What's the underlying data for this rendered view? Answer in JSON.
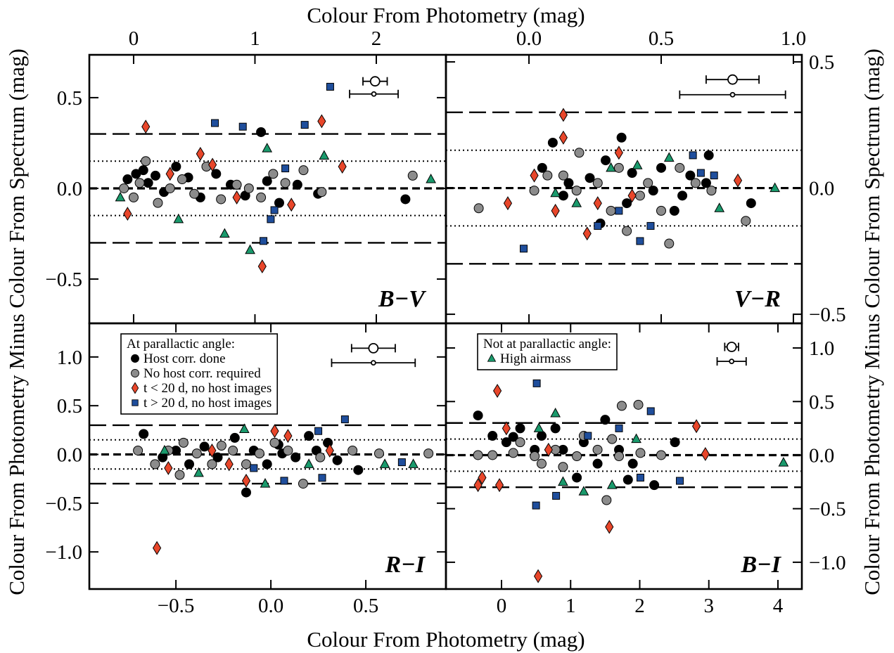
{
  "figure": {
    "top_xlabel": "Colour From Photometry (mag)",
    "bottom_xlabel": "Colour From Photometry (mag)",
    "left_ylabel": "Colour From Photometry Minus Colour From Spectrum (mag)",
    "right_ylabel": "Colour From Photometry Minus Colour From Spectrum (mag)"
  },
  "chart_data": [
    {
      "type": "scatter",
      "label": "B−V",
      "x_axis": "top",
      "y_axis": "left",
      "xlim": [
        -0.365,
        2.574
      ],
      "xticks": [
        0,
        1,
        2
      ],
      "ylim": [
        -0.744,
        0.736
      ],
      "yticks": [
        {
          "value": -0.5,
          "label": "−0.5"
        },
        {
          "value": 0,
          "label": "0.0"
        },
        0.5
      ],
      "hlines": [
        {
          "y": 0,
          "style": "dashed-heavy"
        },
        {
          "y": 0.15,
          "style": "dotted"
        },
        {
          "y": -0.15,
          "style": "dotted"
        },
        {
          "y": 0.3,
          "style": "dashed"
        },
        {
          "y": -0.3,
          "style": "dashed"
        }
      ],
      "errorbars": [
        {
          "x": 1.99,
          "y": 0.59,
          "xerr": 0.1,
          "marker": "open"
        },
        {
          "x": 1.98,
          "y": 0.52,
          "xerr": 0.2,
          "marker": "small"
        }
      ],
      "series": [
        {
          "color": "#000000",
          "marker": "circle",
          "x": [
            -0.05,
            0.02,
            0.08,
            0.12,
            0.18,
            0.25,
            0.35,
            0.45,
            0.55,
            0.68,
            0.8,
            0.92,
            1.05,
            1.1,
            1.2,
            1.35,
            1.52,
            2.24
          ],
          "y": [
            0.05,
            0.08,
            0.1,
            0.03,
            0.07,
            -0.02,
            0.12,
            0.06,
            -0.05,
            0.08,
            0.02,
            -0.04,
            0.31,
            0.04,
            -0.08,
            0.02,
            -0.03,
            -0.06
          ]
        },
        {
          "color": "#8c8c8c",
          "marker": "circle",
          "x": [
            -0.08,
            0.0,
            0.05,
            0.1,
            0.2,
            0.3,
            0.4,
            0.5,
            0.6,
            0.72,
            0.85,
            0.95,
            1.05,
            1.15,
            1.25,
            1.4,
            1.55,
            2.3
          ],
          "y": [
            0.0,
            -0.05,
            0.03,
            0.15,
            -0.08,
            0.0,
            0.05,
            -0.03,
            0.12,
            -0.06,
            0.02,
            0.0,
            -0.05,
            0.08,
            0.03,
            0.1,
            -0.02,
            0.07
          ]
        },
        {
          "color": "#e8462a",
          "marker": "diamond",
          "x": [
            -0.05,
            0.1,
            0.3,
            0.55,
            0.65,
            0.85,
            1.06,
            1.3,
            1.55,
            1.72
          ],
          "y": [
            -0.14,
            0.34,
            0.08,
            0.19,
            0.13,
            -0.05,
            -0.43,
            -0.09,
            0.37,
            0.12
          ]
        },
        {
          "color": "#1f4e9c",
          "marker": "square",
          "x": [
            0.67,
            0.9,
            1.62,
            1.41,
            1.13,
            1.07,
            1.25,
            1.16
          ],
          "y": [
            0.36,
            0.34,
            0.56,
            0.35,
            -0.17,
            -0.29,
            0.11,
            -0.12
          ]
        },
        {
          "color": "#1a9a6c",
          "marker": "triangle",
          "x": [
            -0.11,
            0.37,
            0.75,
            1.1,
            1.57,
            2.45,
            0.96
          ],
          "y": [
            -0.05,
            -0.17,
            -0.25,
            0.22,
            0.18,
            0.05,
            -0.34
          ]
        }
      ]
    },
    {
      "type": "scatter",
      "label": "V−R",
      "x_axis": "top",
      "y_axis": "right",
      "xlim": [
        -0.314,
        1.032
      ],
      "xticks": [
        {
          "value": 0,
          "label": "0.0"
        },
        0.5,
        {
          "value": 1,
          "label": "1.0"
        }
      ],
      "ylim": [
        -0.536,
        0.528
      ],
      "yticks": [
        {
          "value": -0.5,
          "label": "−0.5"
        },
        {
          "value": 0,
          "label": "0.0"
        },
        0.5
      ],
      "hlines": [
        {
          "y": 0,
          "style": "dashed-heavy"
        },
        {
          "y": 0.15,
          "style": "dotted"
        },
        {
          "y": -0.15,
          "style": "dotted"
        },
        {
          "y": 0.3,
          "style": "dashed"
        },
        {
          "y": -0.3,
          "style": "dashed"
        }
      ],
      "errorbars": [
        {
          "x": 0.77,
          "y": 0.43,
          "xerr": 0.1,
          "marker": "open"
        },
        {
          "x": 0.77,
          "y": 0.37,
          "xerr": 0.2,
          "marker": "small"
        }
      ],
      "series": [
        {
          "color": "#000000",
          "marker": "circle",
          "x": [
            0.35,
            0.68,
            0.84,
            0.09,
            0.27,
            0.55,
            0.67,
            0.05,
            0.15,
            0.23,
            0.39,
            0.47,
            0.58,
            0.37,
            0.13,
            0.29,
            0.5,
            0.61
          ],
          "y": [
            0.2,
            0.13,
            -0.06,
            0.18,
            -0.14,
            -0.09,
            0.02,
            0.08,
            0.02,
            0.04,
            0.06,
            -0.01,
            -0.03,
            -0.06,
            -0.03,
            0.11,
            0.08,
            0.05
          ]
        },
        {
          "color": "#8c8c8c",
          "marker": "circle",
          "x": [
            -0.19,
            0.53,
            0.37,
            0.19,
            0.82,
            0.07,
            0.18,
            0.26,
            0.34,
            0.42,
            0.5,
            0.57,
            0.63,
            0.02,
            0.13,
            0.31,
            0.45,
            0.69
          ],
          "y": [
            -0.08,
            -0.22,
            -0.17,
            0.14,
            -0.13,
            0.05,
            -0.01,
            0.02,
            0.08,
            -0.03,
            -0.09,
            0.08,
            0.02,
            -0.01,
            0.05,
            -0.09,
            0.02,
            -0.01
          ]
        },
        {
          "color": "#e8462a",
          "marker": "diamond",
          "x": [
            0.13,
            0.13,
            0.22,
            0.34,
            -0.08,
            0.79,
            0.02,
            0.26,
            0.1,
            0.39
          ],
          "y": [
            0.29,
            0.2,
            -0.18,
            0.14,
            -0.06,
            0.03,
            0.05,
            -0.06,
            -0.09,
            -0.03
          ]
        },
        {
          "color": "#1f4e9c",
          "marker": "square",
          "x": [
            -0.02,
            0.42,
            0.62,
            0.46,
            0.65,
            0.7,
            0.26,
            0.34
          ],
          "y": [
            -0.24,
            -0.21,
            0.13,
            -0.15,
            0.06,
            0.05,
            -0.15,
            -0.09
          ]
        },
        {
          "color": "#1a9a6c",
          "marker": "triangle",
          "x": [
            0.41,
            0.93,
            0.72,
            0.53,
            0.31,
            0.18,
            0.1
          ],
          "y": [
            0.09,
            0.0,
            -0.08,
            0.12,
            0.08,
            -0.06,
            -0.02
          ]
        }
      ]
    },
    {
      "type": "scatter",
      "label": "R−I",
      "x_axis": "bottom",
      "y_axis": "left",
      "legend": "upper left",
      "legend_title": "At parallactic angle:",
      "xlim": [
        -0.956,
        0.922
      ],
      "xticks": [
        {
          "value": -0.5,
          "label": "−0.5"
        },
        {
          "value": 0,
          "label": "0.0"
        },
        0.5
      ],
      "ylim": [
        -1.381,
        1.345
      ],
      "yticks": [
        {
          "value": -1,
          "label": "−1.0"
        },
        {
          "value": -0.5,
          "label": "−0.5"
        },
        {
          "value": 0,
          "label": "0.0"
        },
        0.5,
        {
          "value": 1,
          "label": "1.0"
        }
      ],
      "hlines": [
        {
          "y": 0,
          "style": "dashed-heavy"
        },
        {
          "y": 0.15,
          "style": "dotted"
        },
        {
          "y": -0.15,
          "style": "dotted"
        },
        {
          "y": 0.3,
          "style": "dashed"
        },
        {
          "y": -0.3,
          "style": "dashed"
        }
      ],
      "errorbars": [
        {
          "x": 0.54,
          "y": 1.09,
          "xerr": 0.115,
          "marker": "open"
        },
        {
          "x": 0.54,
          "y": 0.94,
          "xerr": 0.22,
          "marker": "small"
        }
      ],
      "series": [
        {
          "name": "Host corr. done",
          "color": "#000000",
          "marker": "circle",
          "x": [
            -0.67,
            -0.19,
            0.04,
            0.46,
            -0.35,
            -0.5,
            -0.09,
            0.13,
            0.24,
            0.35,
            -0.28,
            -0.57,
            0.2,
            -0.13,
            -0.02,
            -0.43,
            0.06,
            0.3
          ],
          "y": [
            0.21,
            0.17,
            0.1,
            -0.16,
            0.08,
            0.04,
            0.04,
            -0.03,
            0.04,
            -0.06,
            -0.03,
            -0.03,
            0.19,
            -0.39,
            -0.1,
            -0.1,
            0.01,
            0.12
          ]
        },
        {
          "name": "No host corr. required",
          "color": "#8c8c8c",
          "marker": "circle",
          "x": [
            -0.7,
            0.17,
            -0.26,
            -0.48,
            0.83,
            -0.54,
            -0.39,
            -0.2,
            -0.06,
            0.09,
            0.26,
            0.43,
            0.57,
            -0.13,
            -0.31,
            -0.61,
            -0.46,
            0.02
          ],
          "y": [
            0.04,
            -0.3,
            0.09,
            -0.21,
            0.01,
            0.04,
            0.01,
            0.04,
            0.01,
            0.04,
            -0.03,
            0.04,
            0.01,
            -0.1,
            -0.1,
            -0.1,
            0.12,
            0.12
          ]
        },
        {
          "name": "t < 20 d, no host images",
          "color": "#e8462a",
          "marker": "diamond",
          "x": [
            -0.6,
            -0.13,
            0.02,
            -0.22,
            -0.54,
            -0.31,
            0.31,
            0.09
          ],
          "y": [
            -0.96,
            -0.27,
            0.24,
            -0.1,
            -0.14,
            0.04,
            0.04,
            0.19
          ]
        },
        {
          "name": "t > 20 d, no host images",
          "color": "#1f4e9c",
          "marker": "square",
          "x": [
            0.25,
            0.39,
            0.27,
            0.07,
            0.69,
            -0.09
          ],
          "y": [
            0.24,
            0.36,
            -0.24,
            -0.27,
            -0.08,
            -0.14
          ]
        },
        {
          "color": "#1a9a6c",
          "marker": "triangle",
          "x": [
            -0.56,
            -0.38,
            -0.14,
            -0.03,
            0.6,
            0.75,
            0.2
          ],
          "y": [
            0.04,
            -0.19,
            0.26,
            -0.3,
            -0.1,
            -0.1,
            -0.1
          ]
        }
      ]
    },
    {
      "type": "scatter",
      "label": "B−I",
      "x_axis": "bottom",
      "y_axis": "right",
      "legend": "upper left",
      "legend_title": "Not at parallactic angle:",
      "xlim": [
        -0.804,
        4.346
      ],
      "xticks": [
        0,
        1,
        2,
        3,
        4
      ],
      "ylim": [
        -1.25,
        1.23
      ],
      "yticks": [
        {
          "value": -1,
          "label": "−1.0"
        },
        {
          "value": -0.5,
          "label": "−0.5"
        },
        {
          "value": 0,
          "label": "0.0"
        },
        0.5,
        {
          "value": 1,
          "label": "1.0"
        }
      ],
      "hlines": [
        {
          "y": 0,
          "style": "dashed-heavy"
        },
        {
          "y": 0.15,
          "style": "dotted"
        },
        {
          "y": -0.15,
          "style": "dotted"
        },
        {
          "y": 0.3,
          "style": "dashed"
        },
        {
          "y": -0.3,
          "style": "dashed"
        }
      ],
      "errorbars": [
        {
          "x": 3.33,
          "y": 1.01,
          "xerr": 0.1,
          "marker": "open"
        },
        {
          "x": 3.33,
          "y": 0.875,
          "xerr": 0.21,
          "marker": "small"
        }
      ],
      "series": [
        {
          "color": "#000000",
          "marker": "circle",
          "x": [
            -0.34,
            0.17,
            0.78,
            1.5,
            1.83,
            2.21,
            2.51,
            -0.13,
            0.07,
            0.27,
            0.48,
            0.89,
            1.19,
            1.7,
            1.9,
            0.58,
            1.39,
            1.09
          ],
          "y": [
            0.37,
            0.17,
            0.25,
            0.33,
            -0.23,
            -0.28,
            0.12,
            0.18,
            0.12,
            0.25,
            0.05,
            0.05,
            0.12,
            0.05,
            -0.08,
            0.18,
            -0.08,
            -0.21
          ]
        },
        {
          "color": "#8c8c8c",
          "marker": "circle",
          "x": [
            1.74,
            1.98,
            1.52,
            -0.34,
            -0.13,
            0.17,
            0.48,
            0.78,
            1.09,
            1.39,
            1.7,
            2.01,
            2.31,
            0.58,
            1.19,
            0.27,
            1.6,
            0.89
          ],
          "y": [
            0.46,
            0.47,
            -0.42,
            0.0,
            0.0,
            0.02,
            -0.01,
            0.05,
            -0.01,
            0.05,
            -0.01,
            0.02,
            0.0,
            -0.08,
            0.18,
            0.12,
            0.15,
            -0.11
          ]
        },
        {
          "color": "#e8462a",
          "marker": "diamond",
          "x": [
            -0.06,
            0.53,
            1.56,
            -0.34,
            -0.03,
            -0.28,
            0.68,
            0.07,
            2.82,
            2.95
          ],
          "y": [
            0.6,
            -1.13,
            -0.67,
            -0.28,
            -0.28,
            -0.21,
            0.05,
            0.25,
            0.27,
            0.01
          ]
        },
        {
          "color": "#1f4e9c",
          "marker": "square",
          "x": [
            0.51,
            0.5,
            0.79,
            1.25,
            2.16,
            2.58,
            1.7,
            2.01
          ],
          "y": [
            0.67,
            -0.47,
            -0.38,
            0.18,
            0.41,
            -0.24,
            0.25,
            -0.21
          ]
        },
        {
          "name": "High airmass",
          "color": "#1a9a6c",
          "marker": "triangle",
          "x": [
            0.54,
            0.78,
            1.19,
            4.08,
            1.95,
            0.89,
            1.6
          ],
          "y": [
            0.25,
            0.39,
            -0.34,
            -0.07,
            0.15,
            -0.25,
            -0.28
          ]
        }
      ]
    }
  ]
}
